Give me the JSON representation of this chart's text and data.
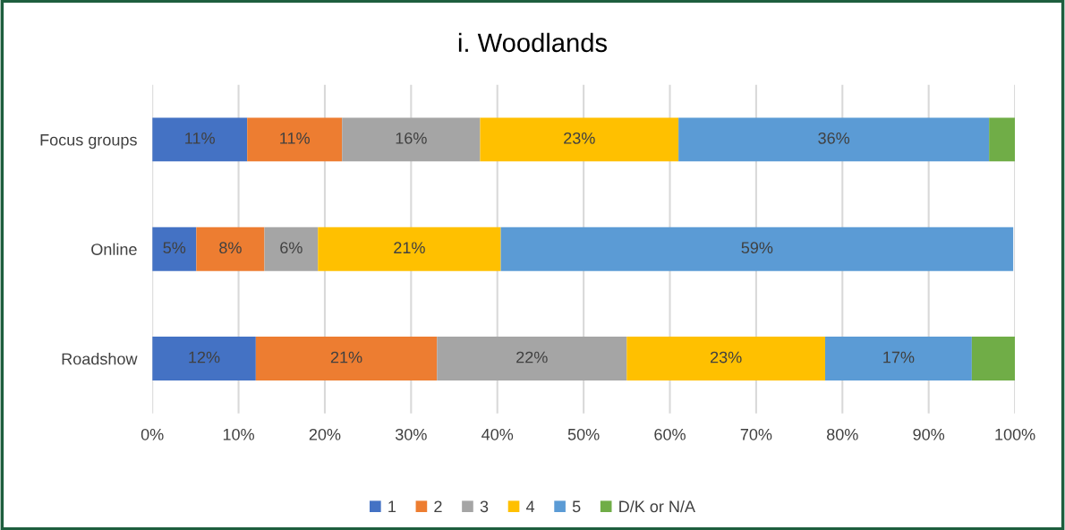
{
  "chart_data": {
    "type": "bar",
    "orientation": "horizontal",
    "stacked": true,
    "title": "i. Woodlands",
    "categories": [
      "Focus groups",
      "Online",
      "Roadshow"
    ],
    "series": [
      {
        "name": "1",
        "color": "#4472c4",
        "values": [
          11,
          5.1,
          12
        ],
        "value_labels": [
          "11%",
          "5%",
          "12%"
        ]
      },
      {
        "name": "2",
        "color": "#ed7d31",
        "values": [
          11,
          7.9,
          21
        ],
        "value_labels": [
          "11%",
          "8%",
          "21%"
        ]
      },
      {
        "name": "3",
        "color": "#a5a5a5",
        "values": [
          16,
          6.2,
          22
        ],
        "value_labels": [
          "16%",
          "6%",
          "22%"
        ]
      },
      {
        "name": "4",
        "color": "#ffc000",
        "values": [
          23,
          21.2,
          23
        ],
        "value_labels": [
          "23%",
          "21%",
          "23%"
        ]
      },
      {
        "name": "5",
        "color": "#5b9bd5",
        "values": [
          36,
          59.4,
          17
        ],
        "value_labels": [
          "36%",
          "59%",
          "17%"
        ]
      },
      {
        "name": "D/K or N/A",
        "color": "#70ad47",
        "values": [
          3,
          null,
          5
        ],
        "value_labels": [
          null,
          null,
          null
        ]
      }
    ],
    "xlim": [
      0,
      100
    ],
    "xticks": [
      {
        "value": 0,
        "label": "0%"
      },
      {
        "value": 10,
        "label": "10%"
      },
      {
        "value": 20,
        "label": "20%"
      },
      {
        "value": 30,
        "label": "30%"
      },
      {
        "value": 40,
        "label": "40%"
      },
      {
        "value": 50,
        "label": "50%"
      },
      {
        "value": 60,
        "label": "60%"
      },
      {
        "value": 70,
        "label": "70%"
      },
      {
        "value": 80,
        "label": "80%"
      },
      {
        "value": 90,
        "label": "90%"
      },
      {
        "value": 100,
        "label": "100%"
      }
    ],
    "grid": "x",
    "legend": "bottom"
  }
}
